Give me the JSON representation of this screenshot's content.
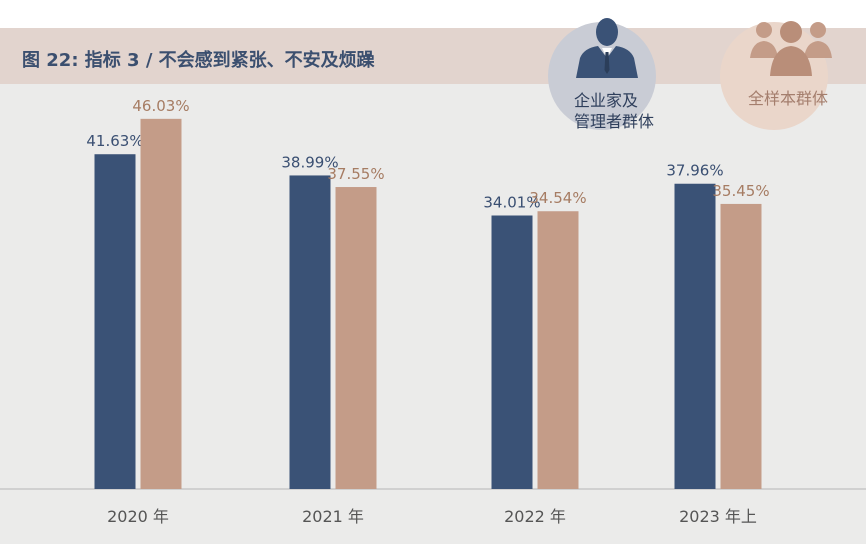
{
  "title": "图 22: 指标 3 / 不会感到紧张、不安及烦躁",
  "legend": {
    "entrepreneurs_line1": "企业家及",
    "entrepreneurs_line2": "管理者群体",
    "all_sample": "全样本群体",
    "entrepreneurs_icon": "businessman-icon",
    "all_sample_icon": "group-of-people-icon"
  },
  "colors": {
    "entrepreneurs": "#3a5276",
    "all_sample": "#c49c88",
    "entrepreneurs_label": "#3a4f72",
    "all_sample_label": "#a67c63",
    "header_band": "#e2d4ce",
    "panel": "#ebebea"
  },
  "chart_data": {
    "type": "bar",
    "categories": [
      "2020 年",
      "2021 年",
      "2022 年",
      "2023 年上"
    ],
    "series": [
      {
        "name": "企业家及管理者群体",
        "values": [
          41.63,
          38.99,
          34.01,
          37.96
        ],
        "labels": [
          "41.63%",
          "38.99%",
          "34.01%",
          "37.96%"
        ]
      },
      {
        "name": "全样本群体",
        "values": [
          46.03,
          37.55,
          34.54,
          35.45
        ],
        "labels": [
          "46.03%",
          "37.55%",
          "34.54%",
          "35.45%"
        ]
      }
    ],
    "ylim": [
      0,
      48
    ],
    "unit": "%",
    "grid": false,
    "legend_position": "top-right"
  }
}
